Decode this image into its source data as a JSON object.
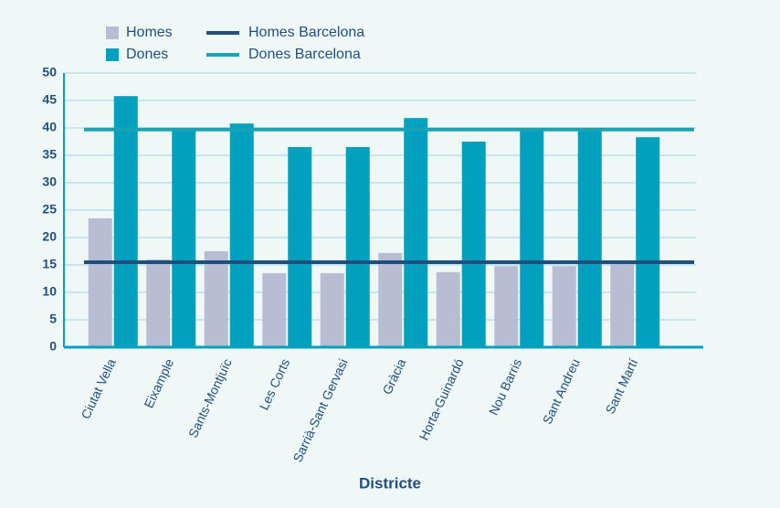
{
  "chart_data": {
    "type": "bar",
    "x_label": "Districte",
    "categories": [
      "Ciutat Vella",
      "Eixample",
      "Sants-Montjuïc",
      "Les Corts",
      "Sarrià-Sant Gervasi",
      "Gràcia",
      "Horta-Guinardó",
      "Nou Barris",
      "Sant Andreu",
      "Sant Martí"
    ],
    "series": [
      {
        "name": "Homes",
        "color": "#b9bdd3",
        "values": [
          23.5,
          16,
          17.5,
          13.5,
          13.5,
          17.2,
          13.7,
          14.8,
          14.8,
          15.7
        ]
      },
      {
        "name": "Dones",
        "color": "#00a0be",
        "values": [
          45.8,
          39.8,
          40.8,
          36.5,
          36.5,
          41.8,
          37.5,
          40,
          40,
          38.3
        ]
      }
    ],
    "reference_lines": [
      {
        "name": "Homes Barcelona",
        "color": "#1f4f7d",
        "value": 15.5
      },
      {
        "name": "Dones Barcelona",
        "color": "#19a4b6",
        "value": 39.7
      }
    ],
    "ylim": [
      0,
      50
    ],
    "yticks": [
      0,
      5,
      10,
      15,
      20,
      25,
      30,
      35,
      40,
      45,
      50
    ],
    "grid": true
  }
}
